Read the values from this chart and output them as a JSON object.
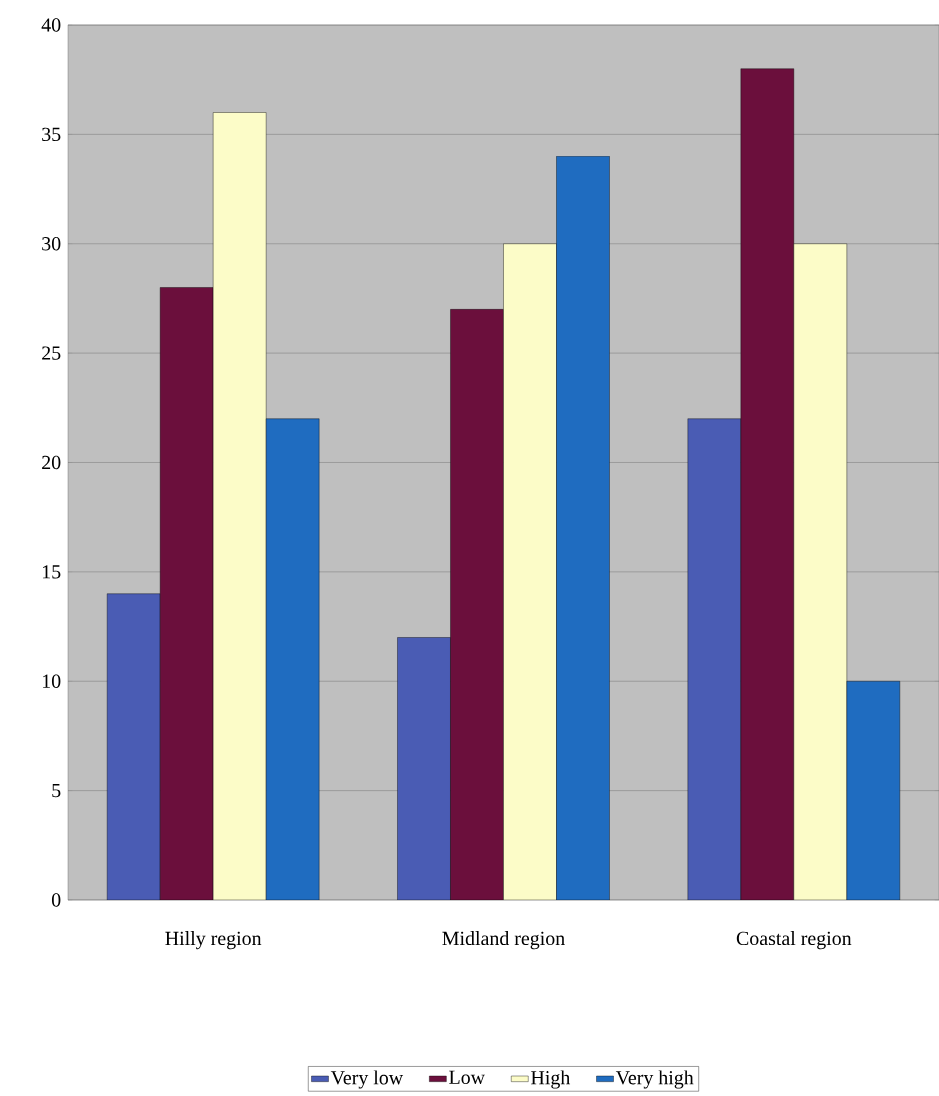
{
  "chart_data": {
    "type": "bar",
    "categories": [
      "Hilly region",
      "Midland region",
      "Coastal region"
    ],
    "series": [
      {
        "name": "Very low",
        "color": "#4a5cb4",
        "values": [
          14,
          12,
          22
        ]
      },
      {
        "name": "Low",
        "color": "#6b0f3c",
        "values": [
          28,
          27,
          38
        ]
      },
      {
        "name": "High",
        "color": "#fcfcc8",
        "values": [
          36,
          30,
          30
        ]
      },
      {
        "name": "Very high",
        "color": "#1f6cc0",
        "values": [
          22,
          34,
          10
        ]
      }
    ],
    "ylim": [
      0,
      40
    ],
    "yticks": [
      0,
      5,
      10,
      15,
      20,
      25,
      30,
      35,
      40
    ],
    "grid": "y",
    "legend": "bottom"
  }
}
